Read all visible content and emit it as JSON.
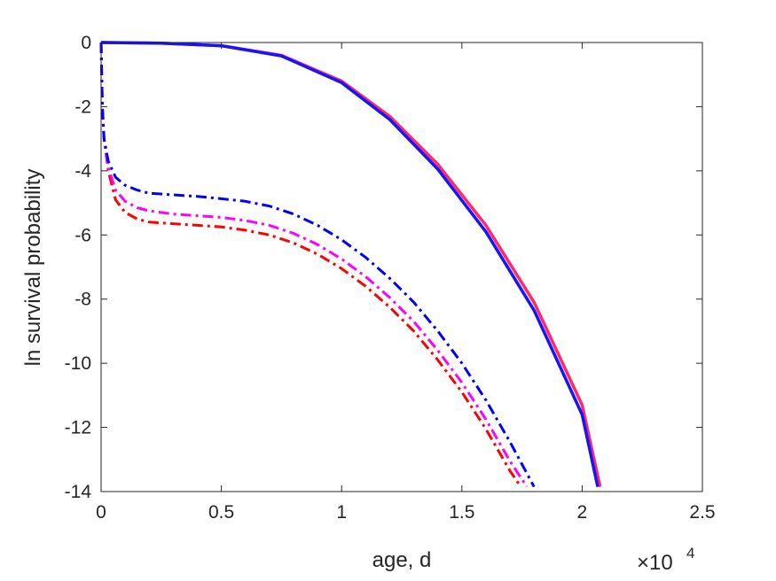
{
  "chart_data": {
    "type": "line",
    "xlabel": "age, d",
    "ylabel": "ln survival probability",
    "x_exponent_label": "×10",
    "x_exponent_power": "4",
    "xlim": [
      0,
      2.5
    ],
    "ylim": [
      -14,
      0
    ],
    "x_ticks": [
      0,
      0.5,
      1,
      1.5,
      2,
      2.5
    ],
    "x_tick_labels": [
      "0",
      "0.5",
      "1",
      "1.5",
      "2",
      "2.5"
    ],
    "y_ticks": [
      0,
      -2,
      -4,
      -6,
      -8,
      -10,
      -12,
      -14
    ],
    "y_tick_labels": [
      "0",
      "-2",
      "-4",
      "-6",
      "-8",
      "-10",
      "-12",
      "-14"
    ],
    "grid": false,
    "series": [
      {
        "color": "#ff2a6a",
        "style": "solid",
        "points": [
          [
            0,
            0
          ],
          [
            0.25,
            -0.02
          ],
          [
            0.5,
            -0.1
          ],
          [
            0.75,
            -0.4
          ],
          [
            1.0,
            -1.2
          ],
          [
            1.2,
            -2.3
          ],
          [
            1.4,
            -3.8
          ],
          [
            1.6,
            -5.7
          ],
          [
            1.8,
            -8.1
          ],
          [
            2.0,
            -11.3
          ],
          [
            2.075,
            -13.85
          ]
        ]
      },
      {
        "color": "#1414ff",
        "style": "solid",
        "points": [
          [
            0,
            0
          ],
          [
            0.25,
            -0.02
          ],
          [
            0.5,
            -0.1
          ],
          [
            0.75,
            -0.42
          ],
          [
            1.0,
            -1.25
          ],
          [
            1.2,
            -2.4
          ],
          [
            1.4,
            -3.95
          ],
          [
            1.6,
            -5.9
          ],
          [
            1.8,
            -8.35
          ],
          [
            2.0,
            -11.6
          ],
          [
            2.065,
            -13.85
          ]
        ]
      },
      {
        "color": "#ff0000",
        "style": "dashdot",
        "points": [
          [
            0,
            0
          ],
          [
            0.005,
            -2.0
          ],
          [
            0.012,
            -3.0
          ],
          [
            0.03,
            -4.0
          ],
          [
            0.06,
            -4.9
          ],
          [
            0.1,
            -5.3
          ],
          [
            0.15,
            -5.5
          ],
          [
            0.2,
            -5.6
          ],
          [
            0.3,
            -5.65
          ],
          [
            0.4,
            -5.7
          ],
          [
            0.5,
            -5.75
          ],
          [
            0.6,
            -5.85
          ],
          [
            0.7,
            -6.0
          ],
          [
            0.8,
            -6.25
          ],
          [
            0.9,
            -6.6
          ],
          [
            1.0,
            -7.05
          ],
          [
            1.1,
            -7.6
          ],
          [
            1.2,
            -8.25
          ],
          [
            1.3,
            -9.0
          ],
          [
            1.4,
            -9.9
          ],
          [
            1.5,
            -10.9
          ],
          [
            1.6,
            -12.05
          ],
          [
            1.7,
            -13.35
          ],
          [
            1.745,
            -13.85
          ]
        ]
      },
      {
        "color": "#ff00ff",
        "style": "dashdot",
        "points": [
          [
            0,
            0
          ],
          [
            0.005,
            -2.0
          ],
          [
            0.012,
            -3.0
          ],
          [
            0.03,
            -3.9
          ],
          [
            0.06,
            -4.6
          ],
          [
            0.1,
            -4.95
          ],
          [
            0.15,
            -5.15
          ],
          [
            0.2,
            -5.25
          ],
          [
            0.3,
            -5.35
          ],
          [
            0.4,
            -5.4
          ],
          [
            0.5,
            -5.45
          ],
          [
            0.6,
            -5.55
          ],
          [
            0.7,
            -5.7
          ],
          [
            0.8,
            -5.95
          ],
          [
            0.9,
            -6.3
          ],
          [
            1.0,
            -6.75
          ],
          [
            1.1,
            -7.3
          ],
          [
            1.2,
            -7.95
          ],
          [
            1.3,
            -8.7
          ],
          [
            1.4,
            -9.6
          ],
          [
            1.5,
            -10.6
          ],
          [
            1.6,
            -11.75
          ],
          [
            1.7,
            -13.05
          ],
          [
            1.77,
            -13.85
          ]
        ]
      },
      {
        "color": "#0000ff",
        "style": "dashdot",
        "points": [
          [
            0,
            0
          ],
          [
            0.005,
            -2.0
          ],
          [
            0.012,
            -3.0
          ],
          [
            0.03,
            -3.7
          ],
          [
            0.06,
            -4.2
          ],
          [
            0.1,
            -4.45
          ],
          [
            0.15,
            -4.6
          ],
          [
            0.2,
            -4.7
          ],
          [
            0.3,
            -4.75
          ],
          [
            0.4,
            -4.8
          ],
          [
            0.5,
            -4.87
          ],
          [
            0.6,
            -4.95
          ],
          [
            0.7,
            -5.1
          ],
          [
            0.8,
            -5.35
          ],
          [
            0.9,
            -5.7
          ],
          [
            1.0,
            -6.15
          ],
          [
            1.1,
            -6.7
          ],
          [
            1.2,
            -7.35
          ],
          [
            1.3,
            -8.1
          ],
          [
            1.4,
            -9.0
          ],
          [
            1.5,
            -10.0
          ],
          [
            1.6,
            -11.15
          ],
          [
            1.7,
            -12.45
          ],
          [
            1.8,
            -13.85
          ]
        ]
      }
    ]
  }
}
